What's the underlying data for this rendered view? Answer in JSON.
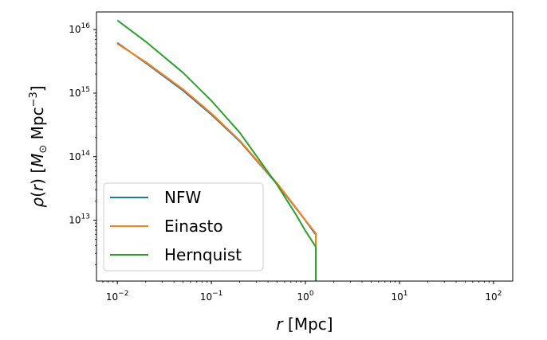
{
  "chart_data": {
    "type": "line",
    "xscale": "log",
    "yscale": "log",
    "xlim": [
      0.006,
      160
    ],
    "ylim": [
      1100000000000.0,
      1.9e+16
    ],
    "xlabel": "r [Mpc]",
    "ylabel": "ρ(r) [M⊙ Mpc⁻³]",
    "xticks": [
      {
        "value": 0.01,
        "mant": "10",
        "exp": "−2"
      },
      {
        "value": 0.1,
        "mant": "10",
        "exp": "−1"
      },
      {
        "value": 1,
        "mant": "10",
        "exp": "0"
      },
      {
        "value": 10,
        "mant": "10",
        "exp": "1"
      },
      {
        "value": 100,
        "mant": "10",
        "exp": "2"
      }
    ],
    "yticks": [
      {
        "value": 10000000000000.0,
        "mant": "10",
        "exp": "13"
      },
      {
        "value": 100000000000000.0,
        "mant": "10",
        "exp": "14"
      },
      {
        "value": 1000000000000000.0,
        "mant": "10",
        "exp": "15"
      },
      {
        "value": 1e+16,
        "mant": "10",
        "exp": "16"
      }
    ],
    "legend_position": "lower-left",
    "grid": false,
    "series": [
      {
        "name": "NFW",
        "color": "#1f77b4",
        "x": [
          0.01,
          0.02,
          0.05,
          0.1,
          0.2,
          0.5,
          0.8,
          1.0,
          1.29,
          1.29
        ],
        "y": [
          6200000000000000.0,
          3000000000000000.0,
          1100000000000000.0,
          460000000000000.0,
          175000000000000.0,
          37000000000000.0,
          15200000000000.0,
          9900000000000.0,
          5900000000000.0,
          1100000000000.0
        ]
      },
      {
        "name": "Einasto",
        "color": "#ff7f0e",
        "x": [
          0.01,
          0.02,
          0.05,
          0.1,
          0.2,
          0.5,
          0.8,
          1.0,
          1.29,
          1.29
        ],
        "y": [
          6000000000000000.0,
          3100000000000000.0,
          1150000000000000.0,
          480000000000000.0,
          180000000000000.0,
          38000000000000.0,
          15500000000000.0,
          10000000000000.0,
          6200000000000.0,
          1100000000000.0
        ]
      },
      {
        "name": "Hernquist",
        "color": "#2ca02c",
        "x": [
          0.01,
          0.02,
          0.05,
          0.1,
          0.2,
          0.5,
          0.8,
          1.0,
          1.29,
          1.29
        ],
        "y": [
          1.4e+16,
          6500000000000000.0,
          2100000000000000.0,
          760000000000000.0,
          240000000000000.0,
          36000000000000.0,
          12000000000000.0,
          6800000000000.0,
          3800000000000.0,
          1100000000000.0
        ]
      }
    ]
  }
}
